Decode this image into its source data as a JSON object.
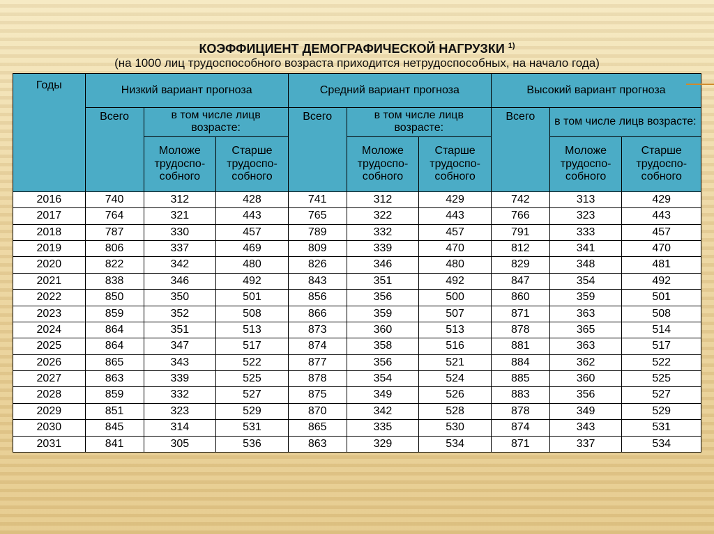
{
  "title": "КОЭФФИЦИЕНТ ДЕМОГРАФИЧЕСКОЙ НАГРУЗКИ",
  "title_sup": "1)",
  "subtitle": "(на 1000 лиц трудоспособного возраста приходится нетрудоспособных, на начало года)",
  "columns": {
    "years": "Годы",
    "variant_low": "Низкий вариант прогноза",
    "variant_mid": "Средний вариант прогноза",
    "variant_high": "Высокий вариант прогноза",
    "total": "Всего",
    "including": "в том числе лицв возрасте:",
    "younger": "Моложе трудоспо-собного",
    "older": "Старше трудоспо-собного"
  },
  "col_widths_pct": [
    10.5,
    8.5,
    10.5,
    10.5,
    8.5,
    10.5,
    10.5,
    8.5,
    10.5,
    11.5
  ],
  "header_bg": "#4bacc6",
  "body_bg": "#ffffff",
  "border_color": "#000000",
  "font_family": "Arial",
  "title_fontsize": 18,
  "body_fontsize": 16,
  "years": [
    2016,
    2017,
    2018,
    2019,
    2020,
    2021,
    2022,
    2023,
    2024,
    2025,
    2026,
    2027,
    2028,
    2029,
    2030,
    2031
  ],
  "rows": [
    [
      740,
      312,
      428,
      741,
      312,
      429,
      742,
      313,
      429
    ],
    [
      764,
      321,
      443,
      765,
      322,
      443,
      766,
      323,
      443
    ],
    [
      787,
      330,
      457,
      789,
      332,
      457,
      791,
      333,
      457
    ],
    [
      806,
      337,
      469,
      809,
      339,
      470,
      812,
      341,
      470
    ],
    [
      822,
      342,
      480,
      826,
      346,
      480,
      829,
      348,
      481
    ],
    [
      838,
      346,
      492,
      843,
      351,
      492,
      847,
      354,
      492
    ],
    [
      850,
      350,
      501,
      856,
      356,
      500,
      860,
      359,
      501
    ],
    [
      859,
      352,
      508,
      866,
      359,
      507,
      871,
      363,
      508
    ],
    [
      864,
      351,
      513,
      873,
      360,
      513,
      878,
      365,
      514
    ],
    [
      864,
      347,
      517,
      874,
      358,
      516,
      881,
      363,
      517
    ],
    [
      865,
      343,
      522,
      877,
      356,
      521,
      884,
      362,
      522
    ],
    [
      863,
      339,
      525,
      878,
      354,
      524,
      885,
      360,
      525
    ],
    [
      859,
      332,
      527,
      875,
      349,
      526,
      883,
      356,
      527
    ],
    [
      851,
      323,
      529,
      870,
      342,
      528,
      878,
      349,
      529
    ],
    [
      845,
      314,
      531,
      865,
      335,
      530,
      874,
      343,
      531
    ],
    [
      841,
      305,
      536,
      863,
      329,
      534,
      871,
      337,
      534
    ]
  ]
}
